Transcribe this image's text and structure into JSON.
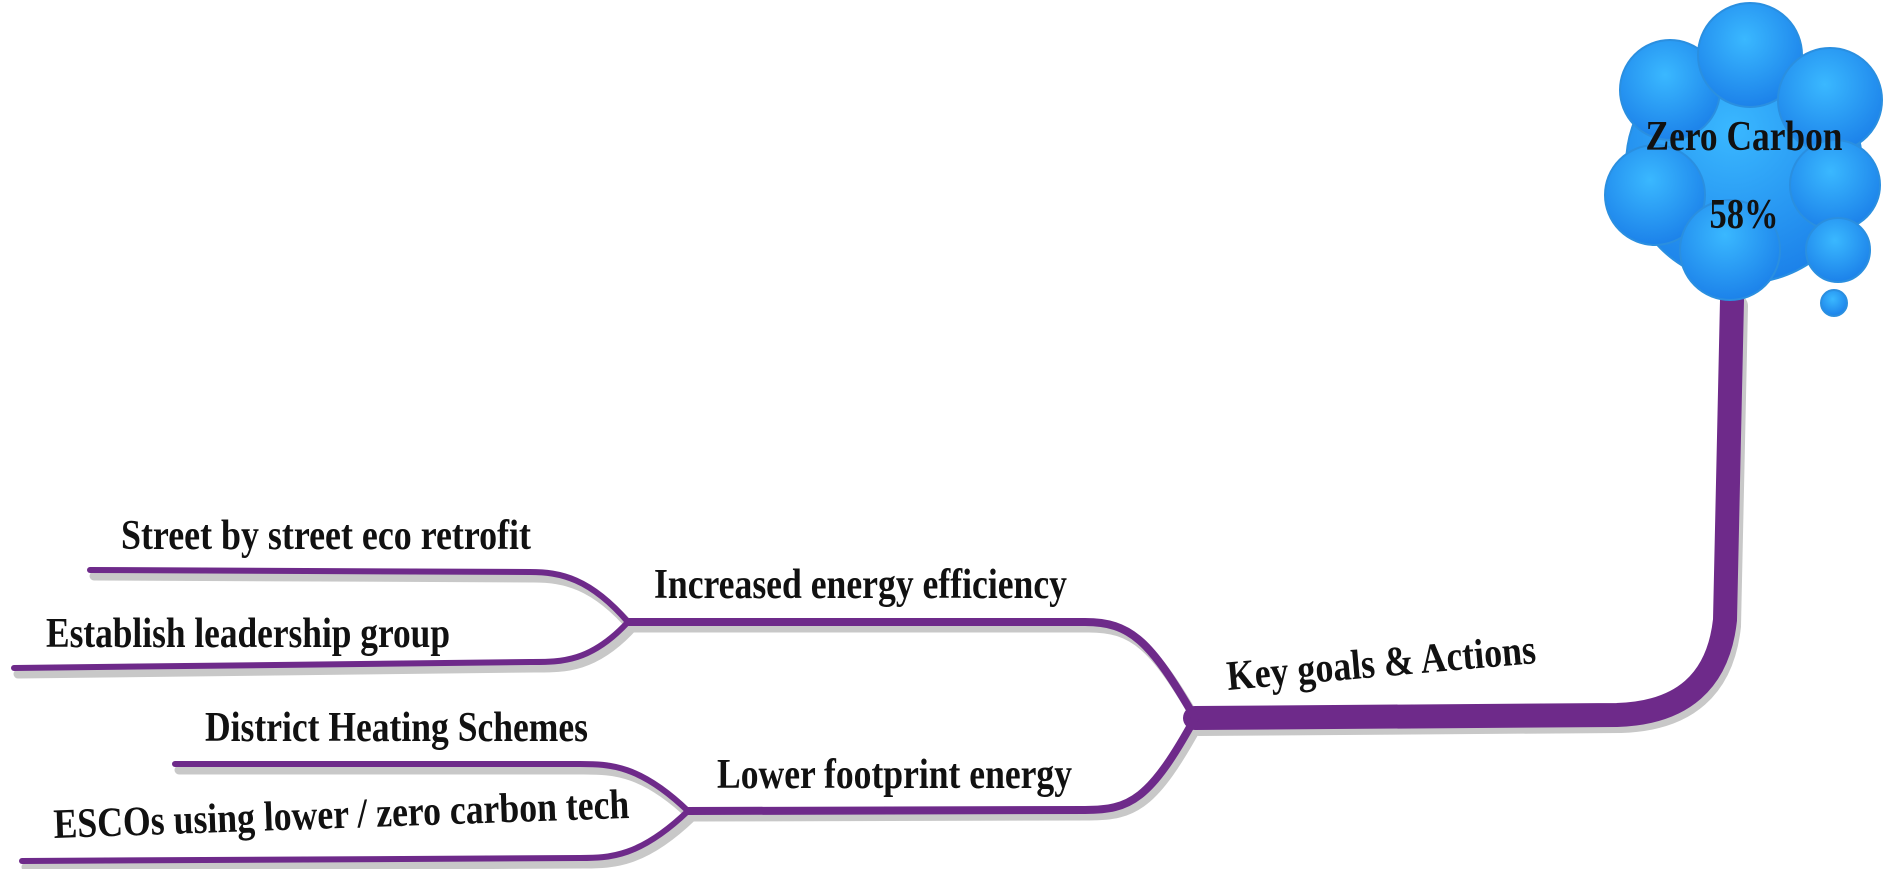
{
  "root": {
    "label": "Zero Carbon",
    "sublabel": "58%"
  },
  "nodes": [
    {
      "label": "Key goals & Actions"
    },
    {
      "label": "Increased energy efficiency"
    },
    {
      "label": "Lower footprint energy"
    },
    {
      "label": "Street by street eco retrofit"
    },
    {
      "label": "Establish leadership group"
    },
    {
      "label": "District Heating Schemes"
    },
    {
      "label": "ESCOs using lower / zero carbon tech"
    }
  ]
}
